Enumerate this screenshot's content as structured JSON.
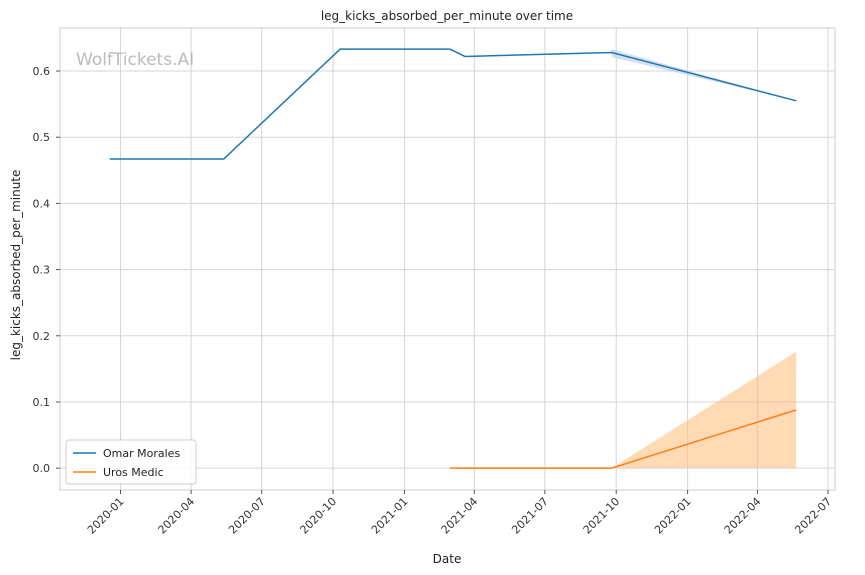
{
  "chart_data": {
    "type": "line",
    "title": "leg_kicks_absorbed_per_minute over time",
    "xlabel": "Date",
    "ylabel": "leg_kicks_absorbed_per_minute",
    "watermark": "WolfTickets.AI",
    "grid": true,
    "legend_position": "bottom-left",
    "xlim": [
      "2019-10-15",
      "2022-07-10"
    ],
    "ylim": [
      -0.033,
      0.665
    ],
    "x_ticks": [
      "2020-01",
      "2020-04",
      "2020-07",
      "2020-10",
      "2021-01",
      "2021-04",
      "2021-07",
      "2021-10",
      "2022-01",
      "2022-04",
      "2022-07"
    ],
    "y_ticks": [
      0.0,
      0.1,
      0.2,
      0.3,
      0.4,
      0.5,
      0.6
    ],
    "y_tick_labels": [
      "0.0",
      "0.1",
      "0.2",
      "0.3",
      "0.4",
      "0.5",
      "0.6"
    ],
    "series": [
      {
        "name": "Omar Morales",
        "color": "#1f77b4",
        "band_color": "#aec7e8",
        "points": [
          {
            "x": "2019-12-18",
            "y": 0.467
          },
          {
            "x": "2020-05-13",
            "y": 0.467
          },
          {
            "x": "2020-10-10",
            "y": 0.633
          },
          {
            "x": "2021-03-01",
            "y": 0.633
          },
          {
            "x": "2021-03-20",
            "y": 0.622
          },
          {
            "x": "2021-09-25",
            "y": 0.628
          },
          {
            "x": "2022-05-21",
            "y": 0.555
          }
        ],
        "band": [
          {
            "x": "2021-09-25",
            "lower": 0.621,
            "upper": 0.633
          },
          {
            "x": "2022-05-21",
            "lower": 0.555,
            "upper": 0.555
          }
        ]
      },
      {
        "name": "Uros Medic",
        "color": "#ff7f0e",
        "band_color": "#ffbb78",
        "points": [
          {
            "x": "2021-03-01",
            "y": 0.0
          },
          {
            "x": "2021-09-25",
            "y": 0.0
          },
          {
            "x": "2022-05-21",
            "y": 0.088
          }
        ],
        "band": [
          {
            "x": "2021-09-25",
            "lower": 0.0,
            "upper": 0.0
          },
          {
            "x": "2022-05-21",
            "lower": 0.0,
            "upper": 0.176
          }
        ]
      }
    ]
  }
}
